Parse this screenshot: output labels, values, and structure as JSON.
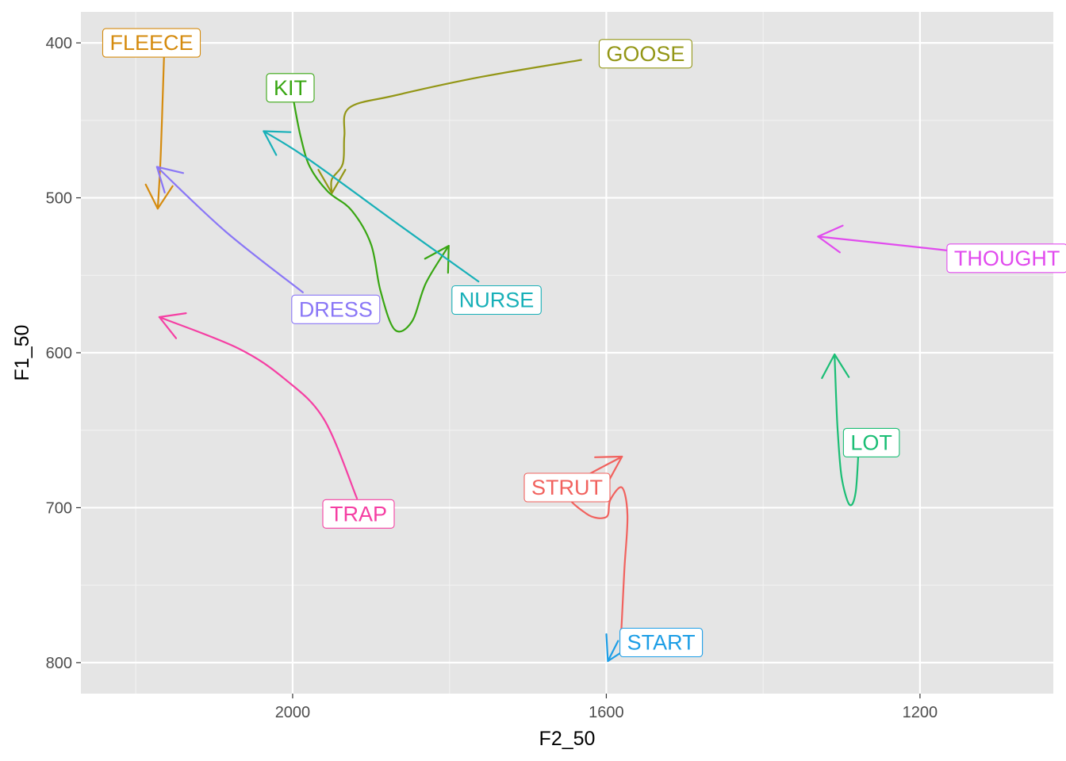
{
  "chart_data": {
    "type": "line",
    "title": "",
    "xlabel": "F2_50",
    "ylabel": "F1_50",
    "x_reversed": true,
    "y_reversed": true,
    "xlim": [
      2270,
      1030
    ],
    "ylim": [
      380,
      820
    ],
    "x_ticks": [
      2000,
      1600,
      1200
    ],
    "y_ticks": [
      400,
      500,
      600,
      700,
      800
    ],
    "x_tick_labels": [
      "2000",
      "1600",
      "1200"
    ],
    "y_tick_labels": [
      "400",
      "500",
      "600",
      "700",
      "800"
    ],
    "grid": true,
    "legend": "none",
    "series": [
      {
        "name": "FLEECE",
        "color": "#D58B0E",
        "points": [
          [
            2164,
            409
          ],
          [
            2166,
            440
          ],
          [
            2168,
            470
          ],
          [
            2170,
            490
          ],
          [
            2172,
            507
          ]
        ]
      },
      {
        "name": "GOOSE",
        "color": "#939616",
        "points": [
          [
            1632,
            411
          ],
          [
            1760,
            422
          ],
          [
            1870,
            434
          ],
          [
            1928,
            442
          ],
          [
            1934,
            460
          ],
          [
            1936,
            478
          ],
          [
            1950,
            488
          ],
          [
            1950,
            497
          ]
        ]
      },
      {
        "name": "KIT",
        "color": "#38A612",
        "points": [
          [
            2000,
            434
          ],
          [
            1990,
            460
          ],
          [
            1978,
            480
          ],
          [
            1955,
            496
          ],
          [
            1925,
            508
          ],
          [
            1900,
            530
          ],
          [
            1888,
            560
          ],
          [
            1870,
            585
          ],
          [
            1848,
            580
          ],
          [
            1830,
            555
          ],
          [
            1801,
            531
          ]
        ]
      },
      {
        "name": "NURSE",
        "color": "#18B0B8",
        "points": [
          [
            1763,
            554
          ],
          [
            1860,
            519
          ],
          [
            1980,
            475
          ],
          [
            2037,
            457
          ]
        ]
      },
      {
        "name": "DRESS",
        "color": "#8A77F6",
        "points": [
          [
            1987,
            561
          ],
          [
            2085,
            522
          ],
          [
            2173,
            480
          ]
        ]
      },
      {
        "name": "TRAP",
        "color": "#F53FA3",
        "points": [
          [
            1918,
            694
          ],
          [
            1960,
            643
          ],
          [
            2010,
            617
          ],
          [
            2070,
            597
          ],
          [
            2170,
            577
          ]
        ]
      },
      {
        "name": "STRUT",
        "color": "#F1625E",
        "points": [
          [
            1581,
            781
          ],
          [
            1577,
            740
          ],
          [
            1573,
            705
          ],
          [
            1580,
            687
          ],
          [
            1595,
            695
          ],
          [
            1600,
            706
          ],
          [
            1625,
            704
          ],
          [
            1648,
            688
          ],
          [
            1580,
            667
          ]
        ]
      },
      {
        "name": "START",
        "color": "#1D9EE6",
        "points": [
          [
            1585,
            786
          ],
          [
            1598,
            799
          ]
        ]
      },
      {
        "name": "LOT",
        "color": "#1BBE75",
        "points": [
          [
            1278,
            659
          ],
          [
            1282,
            690
          ],
          [
            1290,
            698
          ],
          [
            1300,
            680
          ],
          [
            1305,
            650
          ],
          [
            1307,
            628
          ],
          [
            1309,
            601
          ]
        ]
      },
      {
        "name": "THOUGHT",
        "color": "#E14BEE",
        "points": [
          [
            1086,
            540
          ],
          [
            1150,
            535
          ],
          [
            1200,
            532
          ],
          [
            1330,
            525
          ]
        ]
      }
    ],
    "labels": [
      {
        "text": "FLEECE",
        "x": 2180,
        "y": 400
      },
      {
        "text": "GOOSE",
        "x": 1550,
        "y": 407
      },
      {
        "text": "KIT",
        "x": 2003,
        "y": 429
      },
      {
        "text": "NURSE",
        "x": 1740,
        "y": 566
      },
      {
        "text": "DRESS",
        "x": 1945,
        "y": 572
      },
      {
        "text": "TRAP",
        "x": 1916,
        "y": 704
      },
      {
        "text": "STRUT",
        "x": 1650,
        "y": 687
      },
      {
        "text": "START",
        "x": 1530,
        "y": 787
      },
      {
        "text": "LOT",
        "x": 1262,
        "y": 658
      },
      {
        "text": "THOUGHT",
        "x": 1089,
        "y": 539
      }
    ]
  }
}
